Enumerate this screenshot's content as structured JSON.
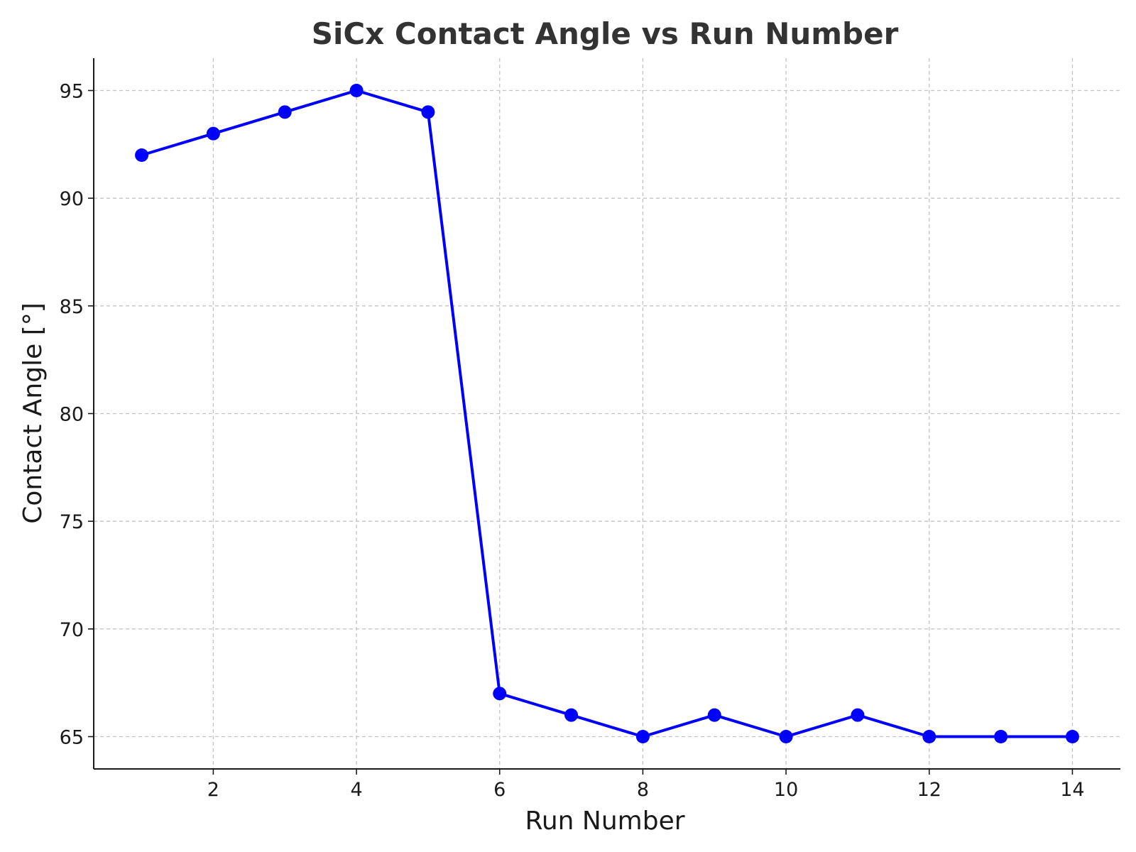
{
  "chart_data": {
    "type": "line",
    "title": "SiCx Contact Angle vs Run Number",
    "xlabel": "Run Number",
    "ylabel": "Contact Angle [°]",
    "xlim": [
      0.33,
      14.67
    ],
    "ylim": [
      63.5,
      96.5
    ],
    "xticks": [
      2,
      4,
      6,
      8,
      10,
      12,
      14
    ],
    "xtick_labels": [
      "2",
      "4",
      "6",
      "8",
      "10",
      "12",
      "14"
    ],
    "yticks": [
      65,
      70,
      75,
      80,
      85,
      90,
      95
    ],
    "ytick_labels": [
      "65",
      "70",
      "75",
      "80",
      "85",
      "90",
      "95"
    ],
    "grid": true,
    "legend": "none",
    "series": [
      {
        "color": "#0000ff",
        "marker": "circle",
        "x": [
          1,
          2,
          3,
          4,
          5,
          6,
          7,
          8,
          9,
          10,
          11,
          12,
          13,
          14
        ],
        "y": [
          92,
          93,
          94,
          95,
          94,
          67,
          66,
          65,
          66,
          65,
          66,
          65,
          65,
          65
        ]
      }
    ]
  }
}
